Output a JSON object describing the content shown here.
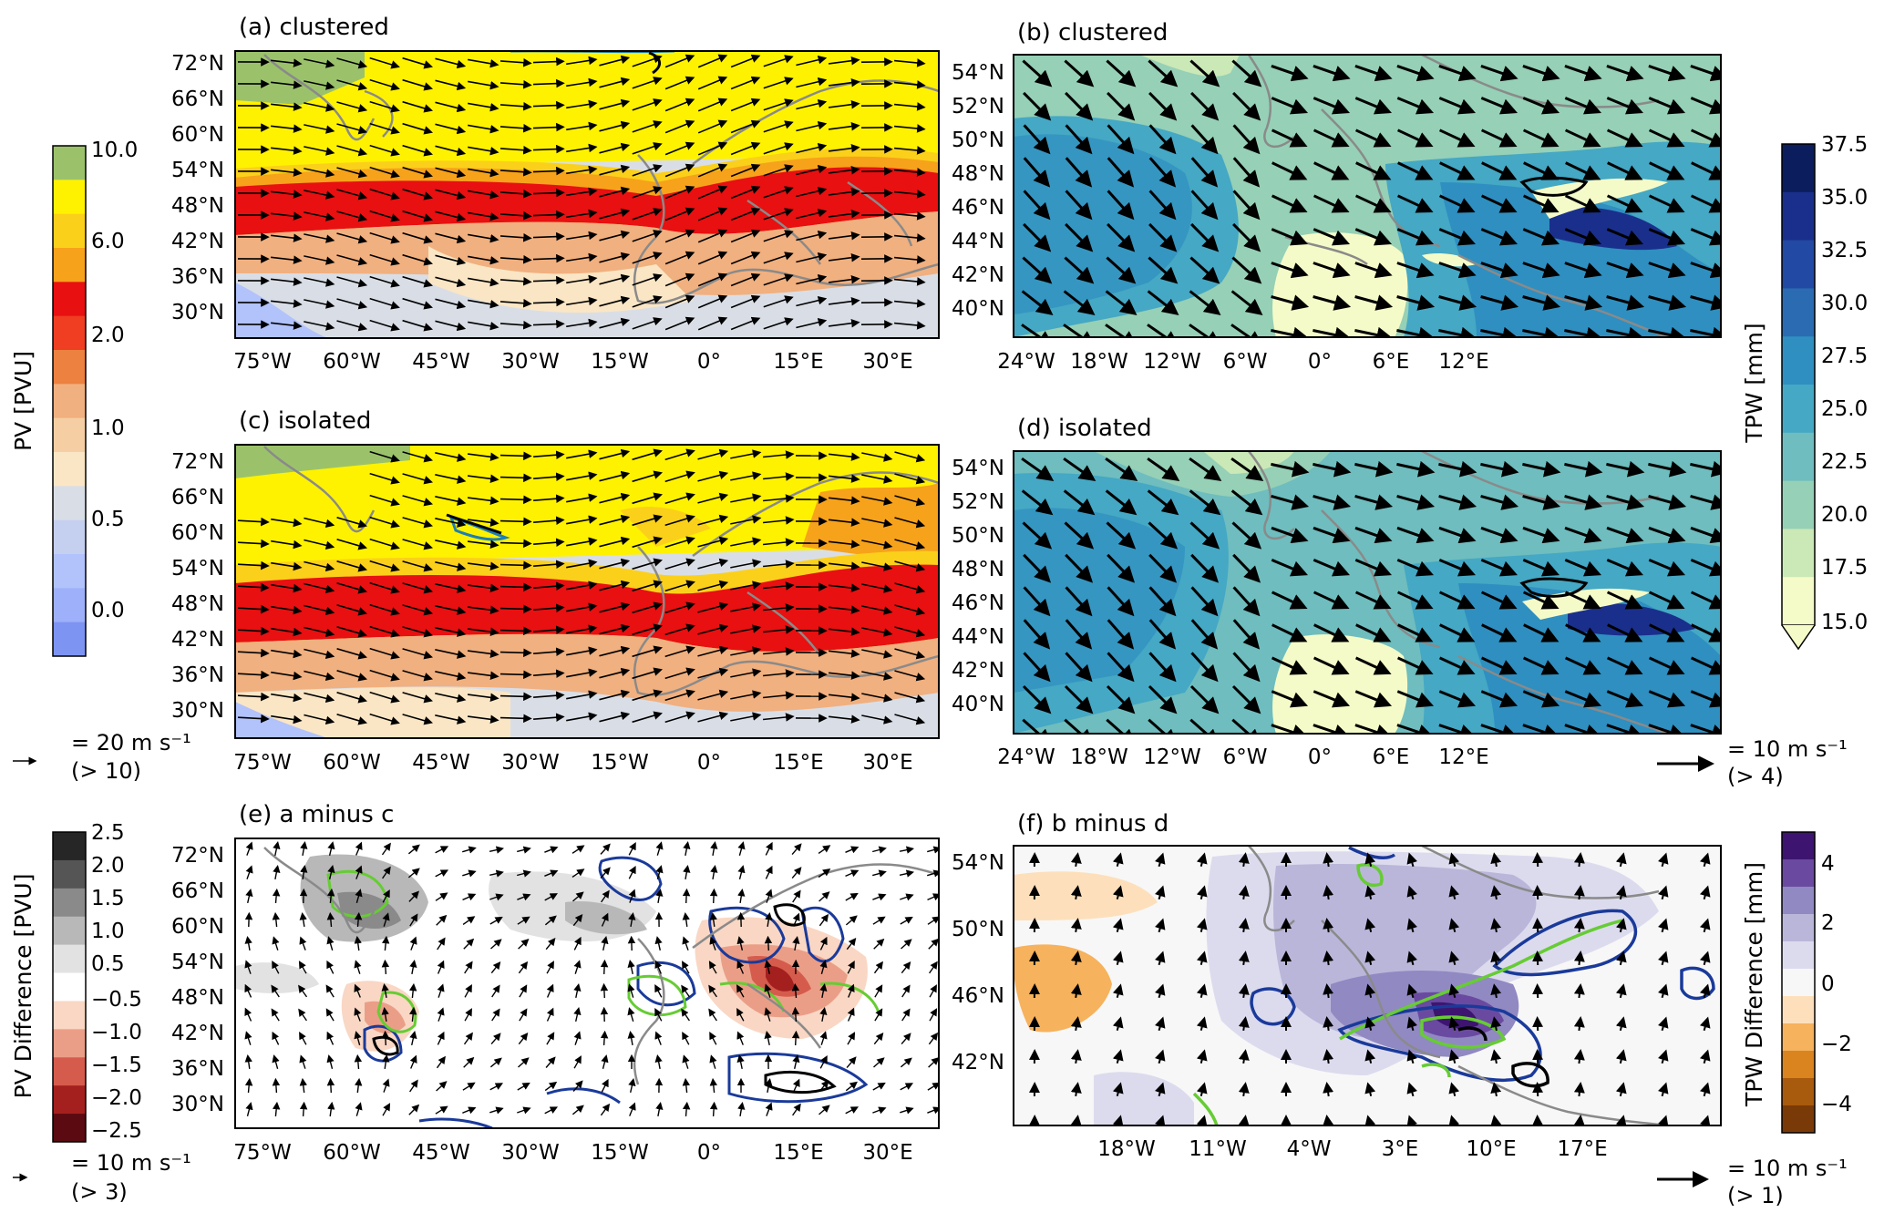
{
  "panels": [
    {
      "id": "a",
      "title": "(a) clustered",
      "field": "PV",
      "lat_ticks": [
        "72°N",
        "66°N",
        "60°N",
        "54°N",
        "48°N",
        "42°N",
        "36°N",
        "30°N"
      ],
      "lon_ticks": [
        "75°W",
        "60°W",
        "45°W",
        "30°W",
        "15°W",
        "0°",
        "15°E",
        "30°E"
      ]
    },
    {
      "id": "b",
      "title": "(b) clustered",
      "field": "TPW",
      "lat_ticks": [
        "54°N",
        "52°N",
        "50°N",
        "48°N",
        "46°N",
        "44°N",
        "42°N",
        "40°N"
      ],
      "lon_ticks": [
        "24°W",
        "18°W",
        "12°W",
        "6°W",
        "0°",
        "6°E",
        "12°E"
      ]
    },
    {
      "id": "c",
      "title": "(c) isolated",
      "field": "PV",
      "lat_ticks": [
        "72°N",
        "66°N",
        "60°N",
        "54°N",
        "48°N",
        "42°N",
        "36°N",
        "30°N"
      ],
      "lon_ticks": [
        "75°W",
        "60°W",
        "45°W",
        "30°W",
        "15°W",
        "0°",
        "15°E",
        "30°E"
      ]
    },
    {
      "id": "d",
      "title": "(d) isolated",
      "field": "TPW",
      "lat_ticks": [
        "54°N",
        "52°N",
        "50°N",
        "48°N",
        "46°N",
        "44°N",
        "42°N",
        "40°N"
      ],
      "lon_ticks": [
        "24°W",
        "18°W",
        "12°W",
        "6°W",
        "0°",
        "6°E",
        "12°E"
      ]
    },
    {
      "id": "e",
      "title": "(e) a minus c",
      "field": "PV difference",
      "lat_ticks": [
        "72°N",
        "66°N",
        "60°N",
        "54°N",
        "48°N",
        "42°N",
        "36°N",
        "30°N"
      ],
      "lon_ticks": [
        "75°W",
        "60°W",
        "45°W",
        "30°W",
        "15°W",
        "0°",
        "15°E",
        "30°E"
      ]
    },
    {
      "id": "f",
      "title": "(f) b minus d",
      "field": "TPW difference",
      "lat_ticks": [
        "54°N",
        "50°N",
        "46°N",
        "42°N"
      ],
      "lon_ticks": [
        "18°W",
        "11°W",
        "4°W",
        "3°E",
        "10°E",
        "17°E"
      ]
    }
  ],
  "colorbars": {
    "pv": {
      "label": "PV [PVU]",
      "ticks": [
        "10.0",
        "6.0",
        "2.0",
        "1.0",
        "0.5",
        "0.0"
      ],
      "colors": [
        "#9bc26b",
        "#fff200",
        "#fbd01a",
        "#f7a21b",
        "#e81010",
        "#ef3e22",
        "#ec8140",
        "#f1b07f",
        "#f5cfa3",
        "#fae6c5",
        "#d9dee6",
        "#c5cff0",
        "#b2c2fb",
        "#9eb0fa",
        "#7d94f2"
      ]
    },
    "tpw": {
      "label": "TPW [mm]",
      "ticks": [
        "37.5",
        "35.0",
        "32.5",
        "30.0",
        "27.5",
        "25.0",
        "22.5",
        "20.0",
        "17.5",
        "15.0"
      ],
      "colors": [
        "#0b1d5c",
        "#1a2f8c",
        "#2249a3",
        "#2b6bb1",
        "#2f8fc0",
        "#45a8c4",
        "#6fbdbe",
        "#96d0b6",
        "#cbe8b7",
        "#f5fbc8"
      ]
    },
    "pvdiff": {
      "label": "PV Difference [PVU]",
      "ticks": [
        "2.5",
        "2.0",
        "1.5",
        "1.0",
        "0.5",
        "−0.5",
        "−1.0",
        "−1.5",
        "−2.0",
        "−2.5"
      ],
      "colors": [
        "#262626",
        "#555555",
        "#8a8a8a",
        "#b8b8b8",
        "#e2e2e2",
        "#ffffff",
        "#f9d7c4",
        "#eb9e87",
        "#d55c4c",
        "#a4201e",
        "#5a0a10"
      ]
    },
    "tpwdiff": {
      "label": "TPW Difference [mm]",
      "ticks": [
        "4",
        "2",
        "0",
        "−2",
        "−4"
      ],
      "colors": [
        "#3d1570",
        "#6a4aa0",
        "#9189c2",
        "#bab6da",
        "#dcdbee",
        "#f7f7f7",
        "#fde0bb",
        "#f6b25c",
        "#d9841e",
        "#a85a0d",
        "#7a3a07"
      ]
    }
  },
  "wind_keys": [
    {
      "label": "= 20 m s⁻¹",
      "cond": "(> 10)"
    },
    {
      "label": "= 10 m s⁻¹",
      "cond": "(> 4)"
    },
    {
      "label": "= 10 m s⁻¹",
      "cond": "(> 3)"
    },
    {
      "label": "= 10 m s⁻¹",
      "cond": "(> 1)"
    }
  ],
  "colors": {
    "land": "#8a8a8a",
    "wind_arrow": "#000000",
    "contour_blue": "#1a3a9a",
    "contour_green": "#66cc33",
    "contour_black": "#000000",
    "contour_teal": "#1f7fb0"
  }
}
